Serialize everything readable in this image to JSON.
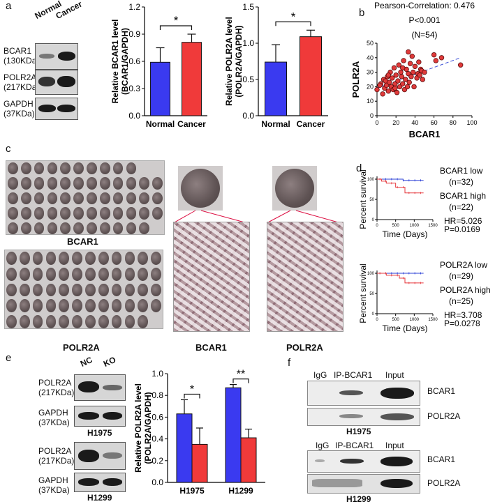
{
  "panels": {
    "a": "a",
    "b": "b",
    "c": "c",
    "d": "d",
    "e": "e",
    "f": "f"
  },
  "a": {
    "lanes": [
      "Normal",
      "Cancer"
    ],
    "blots": [
      {
        "name": "BCAR1",
        "size": "(130KDa)"
      },
      {
        "name": "POLR2A",
        "size": "(217KDa)"
      },
      {
        "name": "GAPDH",
        "size": "(37KDa)"
      }
    ]
  },
  "chart_data": [
    {
      "type": "bar",
      "categories": [
        "Normal",
        "Cancer"
      ],
      "values": [
        0.59,
        0.81
      ],
      "errors": [
        0.16,
        0.09
      ],
      "ylabel": "Relative BCAR1 level (BCAR1/GAPDH)",
      "ylim": [
        0,
        1.2
      ],
      "yticks": [
        "0.0",
        "0.3",
        "0.6",
        "0.9",
        "1.2"
      ],
      "significance": "*",
      "colors": [
        "#3a3af0",
        "#f03a3a"
      ]
    },
    {
      "type": "bar",
      "categories": [
        "Normal",
        "Cancer"
      ],
      "values": [
        0.74,
        1.09
      ],
      "errors": [
        0.24,
        0.09
      ],
      "ylabel": "Relative POLR2A level (POLR2A/GAPDH)",
      "ylim": [
        0,
        1.5
      ],
      "yticks": [
        "0.0",
        "0.5",
        "1.0",
        "1.5"
      ],
      "significance": "*",
      "colors": [
        "#3a3af0",
        "#f03a3a"
      ]
    },
    {
      "type": "scatter",
      "title_lines": [
        "Pearson-Correlation: 0.476",
        "P<0.001",
        "(N=54)"
      ],
      "xlabel": "BCAR1",
      "ylabel": "POLR2A",
      "xlim": [
        0,
        100
      ],
      "ylim": [
        0,
        50
      ],
      "xticks": [
        "0",
        "20",
        "40",
        "60",
        "80",
        "100"
      ],
      "yticks": [
        "0",
        "10",
        "20",
        "30",
        "40",
        "50"
      ],
      "trend": {
        "x": [
          0,
          88
        ],
        "y": [
          19,
          40
        ]
      },
      "points": [
        [
          0,
          18
        ],
        [
          4,
          22
        ],
        [
          6,
          15
        ],
        [
          7,
          25
        ],
        [
          8,
          19
        ],
        [
          9,
          24
        ],
        [
          10,
          21
        ],
        [
          11,
          27
        ],
        [
          12,
          17
        ],
        [
          13,
          23
        ],
        [
          14,
          30
        ],
        [
          15,
          20
        ],
        [
          16,
          26
        ],
        [
          17,
          18
        ],
        [
          18,
          33
        ],
        [
          19,
          22
        ],
        [
          20,
          28
        ],
        [
          21,
          16
        ],
        [
          22,
          24
        ],
        [
          23,
          35
        ],
        [
          24,
          20
        ],
        [
          25,
          30
        ],
        [
          26,
          27
        ],
        [
          27,
          22
        ],
        [
          28,
          38
        ],
        [
          29,
          18
        ],
        [
          30,
          25
        ],
        [
          31,
          32
        ],
        [
          32,
          20
        ],
        [
          33,
          29
        ],
        [
          34,
          23
        ],
        [
          35,
          36
        ],
        [
          36,
          27
        ],
        [
          37,
          41
        ],
        [
          38,
          30
        ],
        [
          39,
          20
        ],
        [
          40,
          34
        ],
        [
          42,
          26
        ],
        [
          43,
          29
        ],
        [
          44,
          37
        ],
        [
          45,
          28
        ],
        [
          46,
          32
        ],
        [
          47,
          31
        ],
        [
          48,
          25
        ],
        [
          50,
          30
        ],
        [
          60,
          42
        ],
        [
          62,
          38
        ],
        [
          68,
          40
        ],
        [
          88,
          35
        ],
        [
          3,
          21
        ],
        [
          19,
          19
        ],
        [
          27,
          33
        ],
        [
          33,
          44
        ],
        [
          12,
          28
        ]
      ]
    },
    {
      "type": "line",
      "ylabel": "Percent survival",
      "xlabel": "Time (Days)",
      "xlim": [
        0,
        1500
      ],
      "ylim": [
        0,
        100
      ],
      "xticks": [
        "0",
        "500",
        "1000",
        "1500"
      ],
      "yticks": [
        "0",
        "50",
        "100"
      ],
      "series": [
        {
          "name": "BCAR1 low",
          "n": "(n=32)",
          "color": "#2a3fd6",
          "x": [
            0,
            700,
            700,
            1250
          ],
          "y": [
            100,
            100,
            97,
            97
          ]
        },
        {
          "name": "BCAR1 high",
          "n": "(n=22)",
          "color": "#e6383d",
          "x": [
            0,
            120,
            120,
            250,
            250,
            500,
            500,
            750,
            750,
            1250
          ],
          "y": [
            100,
            100,
            95,
            95,
            90,
            90,
            80,
            80,
            66,
            66
          ]
        }
      ],
      "stats": [
        "HR=5.026",
        "P=0.0169"
      ]
    },
    {
      "type": "line",
      "ylabel": "Percent survival",
      "xlabel": "Time (Days)",
      "xlim": [
        0,
        1500
      ],
      "ylim": [
        0,
        100
      ],
      "xticks": [
        "0",
        "500",
        "1000",
        "1500"
      ],
      "yticks": [
        "0",
        "50",
        "100"
      ],
      "series": [
        {
          "name": "POLR2A low",
          "n": "(n=29)",
          "color": "#2a3fd6",
          "x": [
            0,
            1250
          ],
          "y": [
            100,
            100
          ]
        },
        {
          "name": "POLR2A high",
          "n": "(n=25)",
          "color": "#e6383d",
          "x": [
            0,
            250,
            250,
            600,
            600,
            750,
            750,
            1250
          ],
          "y": [
            100,
            100,
            95,
            95,
            88,
            88,
            76,
            76
          ]
        }
      ],
      "stats": [
        "HR=3.708",
        "P=0.0278"
      ]
    },
    {
      "type": "bar",
      "categories": [
        "H1975",
        "H1299"
      ],
      "series": [
        {
          "name": "NC",
          "values": [
            0.63,
            0.87
          ],
          "errors": [
            0.13,
            0.03
          ]
        },
        {
          "name": "KO",
          "values": [
            0.35,
            0.41
          ],
          "errors": [
            0.15,
            0.08
          ]
        }
      ],
      "ylabel": "Relative POLR2A level (POLR2A/GAPDH)",
      "ylim": [
        0,
        1.0
      ],
      "yticks": [
        "0.0",
        "0.2",
        "0.4",
        "0.6",
        "0.8",
        "1.0"
      ],
      "significance": [
        "*",
        "**"
      ],
      "colors": [
        "#3a3af0",
        "#f03a3a"
      ]
    }
  ],
  "c": {
    "overview_labels": [
      "BCAR1",
      "POLR2A"
    ],
    "micro_labels": [
      "BCAR1",
      "POLR2A"
    ]
  },
  "e": {
    "lanes": [
      "NC",
      "KO"
    ],
    "cell_lines": [
      "H1975",
      "H1299"
    ],
    "blots": [
      {
        "name": "POLR2A",
        "size": "(217KDa)"
      },
      {
        "name": "GAPDH",
        "size": "(37KDa)"
      }
    ]
  },
  "f": {
    "lanes": [
      "IgG",
      "IP-BCAR1",
      "Input"
    ],
    "cell_lines": [
      "H1975",
      "H1299"
    ],
    "blots": [
      "BCAR1",
      "POLR2A"
    ]
  }
}
